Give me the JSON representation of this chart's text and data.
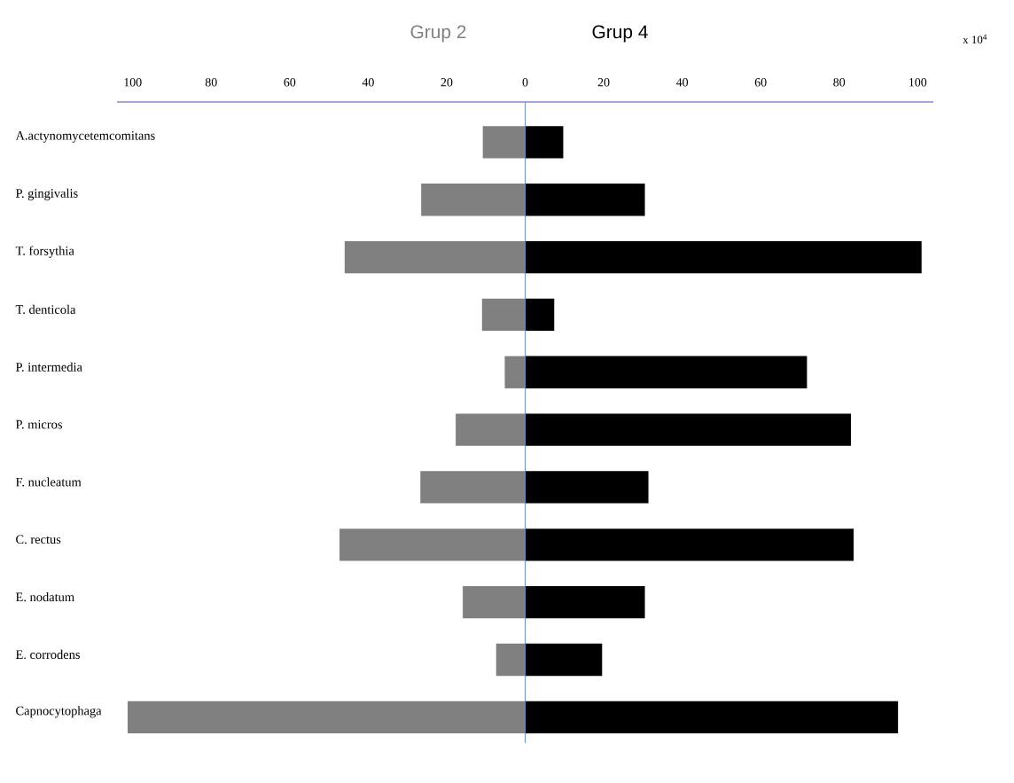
{
  "chart_data": {
    "type": "bar",
    "orientation": "horizontal",
    "stacked": true,
    "ref_lines": [
      {
        "axis": "x",
        "value": 0,
        "color": "#6b8fbf"
      }
    ],
    "categories": [
      "A.actynomycetemcomitans",
      "P. gingivalis",
      "T. forsythia",
      "T. denticola",
      "P. intermedia",
      "P. micros",
      "F. nucleatum",
      "C. rectus",
      "E. nodatum",
      "E. corrodens",
      "Capnocytophaga"
    ],
    "series": [
      {
        "name": "Grup 2",
        "color": "#808080",
        "values": [
          -10.8,
          -26.5,
          -46,
          -11,
          -5.2,
          -17.7,
          -26.7,
          -47.3,
          -15.9,
          -7.4,
          -101.3
        ]
      },
      {
        "name": "Grup 4",
        "color": "#000000",
        "values": [
          9.7,
          30.5,
          101,
          7.4,
          71.8,
          83,
          31.4,
          83.7,
          30.5,
          19.6,
          95
        ]
      }
    ],
    "xlim": [
      -104,
      104
    ],
    "xticks": [
      {
        "value": -100,
        "label": "100"
      },
      {
        "value": -80,
        "label": "80"
      },
      {
        "value": -60,
        "label": "60"
      },
      {
        "value": -40,
        "label": "40"
      },
      {
        "value": -20,
        "label": "20"
      },
      0,
      20,
      40,
      60,
      80,
      100
    ],
    "annotations": [
      "x 10$^{4}$"
    ]
  }
}
